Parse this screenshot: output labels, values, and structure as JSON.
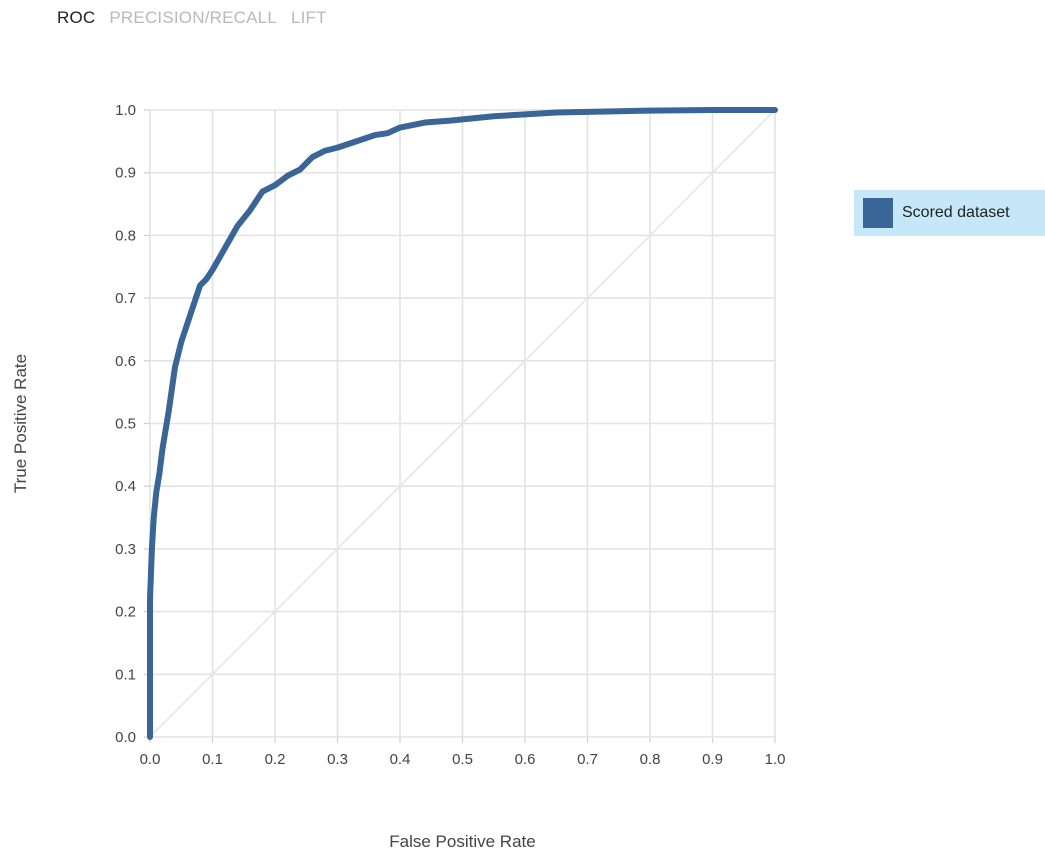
{
  "tabs": [
    {
      "label": "ROC",
      "active": true
    },
    {
      "label": "PRECISION/RECALL",
      "active": false
    },
    {
      "label": "LIFT",
      "active": false
    }
  ],
  "colors": {
    "series": "#3a6597",
    "grid": "#e3e3e3",
    "diagonal": "#e6e6e6",
    "tick_text": "#444444",
    "axis_text": "#444444"
  },
  "legend": {
    "label": "Scored dataset"
  },
  "chart_data": {
    "type": "line",
    "title": "",
    "xlabel": "False Positive Rate",
    "ylabel": "True Positive Rate",
    "xlim": [
      0,
      1
    ],
    "ylim": [
      0,
      1
    ],
    "xticks": [
      "0.0",
      "0.1",
      "0.2",
      "0.3",
      "0.4",
      "0.5",
      "0.6",
      "0.7",
      "0.8",
      "0.9",
      "1.0"
    ],
    "yticks": [
      "0.0",
      "0.1",
      "0.2",
      "0.3",
      "0.4",
      "0.5",
      "0.6",
      "0.7",
      "0.8",
      "0.9",
      "1.0"
    ],
    "grid": true,
    "legend_position": "right",
    "diagonal_reference": true,
    "series": [
      {
        "name": "Scored dataset",
        "x": [
          0.0,
          0.0,
          0.003,
          0.006,
          0.01,
          0.015,
          0.02,
          0.03,
          0.04,
          0.05,
          0.06,
          0.07,
          0.08,
          0.09,
          0.1,
          0.12,
          0.14,
          0.16,
          0.18,
          0.2,
          0.22,
          0.24,
          0.26,
          0.28,
          0.3,
          0.33,
          0.36,
          0.38,
          0.4,
          0.44,
          0.48,
          0.5,
          0.55,
          0.6,
          0.65,
          0.7,
          0.75,
          0.8,
          0.9,
          1.0
        ],
        "y": [
          0.0,
          0.22,
          0.3,
          0.35,
          0.39,
          0.42,
          0.46,
          0.52,
          0.59,
          0.63,
          0.66,
          0.69,
          0.72,
          0.73,
          0.745,
          0.78,
          0.815,
          0.84,
          0.87,
          0.88,
          0.895,
          0.905,
          0.925,
          0.935,
          0.94,
          0.95,
          0.96,
          0.963,
          0.972,
          0.98,
          0.983,
          0.985,
          0.99,
          0.993,
          0.996,
          0.997,
          0.998,
          0.999,
          1.0,
          1.0
        ]
      }
    ]
  }
}
